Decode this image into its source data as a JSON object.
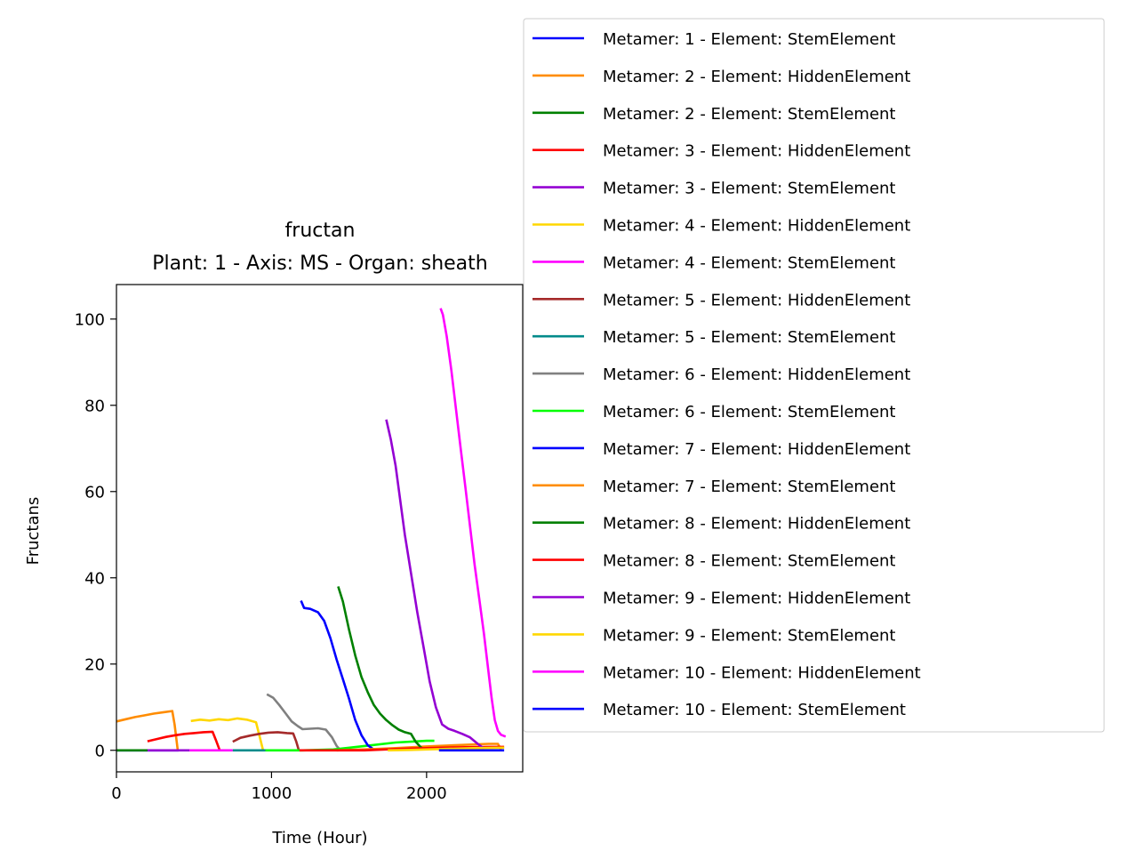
{
  "chart_data": {
    "type": "line",
    "title": "fructan",
    "subtitle": "Plant: 1 - Axis: MS - Organ: sheath",
    "xlabel": "Time (Hour)",
    "ylabel": "Fructans",
    "xlim": [
      0,
      2620
    ],
    "ylim": [
      -5,
      108
    ],
    "xticks": [
      0,
      1000,
      2000
    ],
    "yticks": [
      0,
      20,
      40,
      60,
      80,
      100
    ],
    "grid": false,
    "legend_position": "top-right, outside plot",
    "series": [
      {
        "name": "Metamer: 1 - Element: StemElement",
        "color": "#0000ff",
        "x": [
          0,
          200,
          400
        ],
        "y": [
          0,
          0,
          0
        ]
      },
      {
        "name": "Metamer: 2 - Element: HiddenElement",
        "color": "#ff8c00",
        "x": [
          0,
          60,
          120,
          180,
          240,
          300,
          360,
          375,
          395
        ],
        "y": [
          6.7,
          7.2,
          7.7,
          8.1,
          8.5,
          8.8,
          9.1,
          6.0,
          0.1
        ]
      },
      {
        "name": "Metamer: 2 - Element: StemElement",
        "color": "#008000",
        "x": [
          0,
          100,
          200
        ],
        "y": [
          0,
          0,
          0
        ]
      },
      {
        "name": "Metamer: 3 - Element: HiddenElement",
        "color": "#ff0000",
        "x": [
          200,
          260,
          320,
          380,
          440,
          500,
          560,
          620,
          640,
          665
        ],
        "y": [
          2.1,
          2.6,
          3.1,
          3.5,
          3.8,
          4.0,
          4.2,
          4.3,
          2.5,
          0.1
        ]
      },
      {
        "name": "Metamer: 3 - Element: StemElement",
        "color": "#9400d3",
        "x": [
          200,
          300,
          470
        ],
        "y": [
          0,
          0,
          0
        ]
      },
      {
        "name": "Metamer: 4 - Element: HiddenElement",
        "color": "#ffd700",
        "x": [
          480,
          540,
          600,
          660,
          720,
          780,
          840,
          900,
          925,
          945
        ],
        "y": [
          6.8,
          7.1,
          6.9,
          7.2,
          7.0,
          7.4,
          7.1,
          6.5,
          3.0,
          0.1
        ]
      },
      {
        "name": "Metamer: 4 - Element: StemElement",
        "color": "#ff00ff",
        "x": [
          470,
          600,
          750
        ],
        "y": [
          0,
          0,
          0
        ]
      },
      {
        "name": "Metamer: 5 - Element: HiddenElement",
        "color": "#a52a2a",
        "x": [
          750,
          800,
          860,
          920,
          980,
          1040,
          1100,
          1140,
          1160,
          1175
        ],
        "y": [
          2.0,
          2.9,
          3.4,
          3.8,
          4.1,
          4.2,
          4.0,
          3.9,
          2.0,
          0.1
        ]
      },
      {
        "name": "Metamer: 5 - Element: StemElement",
        "color": "#008b8b",
        "x": [
          750,
          850,
          960
        ],
        "y": [
          0,
          0,
          0
        ]
      },
      {
        "name": "Metamer: 6 - Element: HiddenElement",
        "color": "#808080",
        "x": [
          970,
          1010,
          1050,
          1090,
          1130,
          1170,
          1200,
          1250,
          1300,
          1350,
          1390,
          1420,
          1440
        ],
        "y": [
          13.0,
          12.2,
          10.5,
          8.6,
          6.7,
          5.6,
          4.9,
          5.0,
          5.1,
          4.8,
          3.0,
          1.0,
          0.2
        ]
      },
      {
        "name": "Metamer: 6 - Element: StemElement",
        "color": "#00ff00",
        "x": [
          960,
          1100,
          1200,
          1400,
          1600,
          1800,
          2000,
          2050
        ],
        "y": [
          0,
          0,
          0,
          0.2,
          1.0,
          1.8,
          2.2,
          2.2
        ]
      },
      {
        "name": "Metamer: 7 - Element: HiddenElement",
        "color": "#0000ff",
        "x": [
          1190,
          1210,
          1250,
          1300,
          1340,
          1380,
          1420,
          1460,
          1500,
          1540,
          1580,
          1620,
          1650,
          1670
        ],
        "y": [
          34.7,
          33.0,
          32.8,
          32.0,
          30.0,
          26.0,
          21.0,
          16.5,
          12.0,
          7.0,
          3.5,
          1.2,
          0.4,
          0.1
        ]
      },
      {
        "name": "Metamer: 7 - Element: StemElement",
        "color": "#ff8c00",
        "x": [
          1420,
          1600,
          1800,
          2000,
          2200,
          2400,
          2460,
          2480
        ],
        "y": [
          0,
          0.2,
          0.5,
          0.9,
          1.2,
          1.5,
          1.5,
          0.2
        ]
      },
      {
        "name": "Metamer: 8 - Element: HiddenElement",
        "color": "#008000",
        "x": [
          1430,
          1460,
          1500,
          1540,
          1580,
          1620,
          1660,
          1700,
          1740,
          1780,
          1820,
          1860,
          1900,
          1930,
          1960,
          1980
        ],
        "y": [
          38.0,
          34.5,
          28.0,
          22.0,
          17.0,
          13.5,
          10.5,
          8.5,
          7.0,
          5.8,
          4.8,
          4.2,
          3.8,
          2.0,
          0.8,
          0.2
        ]
      },
      {
        "name": "Metamer: 8 - Element: StemElement",
        "color": "#ff0000",
        "x": [
          1180,
          1400,
          1600,
          1800,
          2000,
          2200,
          2400,
          2500
        ],
        "y": [
          0,
          0,
          0,
          0.3,
          0.5,
          0.7,
          0.8,
          0.8
        ]
      },
      {
        "name": "Metamer: 9 - Element: HiddenElement",
        "color": "#9400d3",
        "x": [
          1740,
          1770,
          1800,
          1830,
          1860,
          1900,
          1940,
          1980,
          2020,
          2060,
          2100,
          2140,
          2180,
          2230,
          2280,
          2330,
          2370
        ],
        "y": [
          76.7,
          72.0,
          66.0,
          58.0,
          50.0,
          41.0,
          32.0,
          24.0,
          16.0,
          10.0,
          6.0,
          5.0,
          4.5,
          3.8,
          3.0,
          1.5,
          0.4
        ]
      },
      {
        "name": "Metamer: 9 - Element: StemElement",
        "color": "#ffd700",
        "x": [
          1750,
          1900,
          2100,
          2300,
          2500
        ],
        "y": [
          0,
          0.1,
          0.3,
          0.5,
          0.6
        ]
      },
      {
        "name": "Metamer: 10 - Element: HiddenElement",
        "color": "#ff00ff",
        "x": [
          2090,
          2105,
          2130,
          2160,
          2190,
          2220,
          2250,
          2280,
          2310,
          2340,
          2370,
          2400,
          2420,
          2440,
          2460,
          2480,
          2500,
          2510
        ],
        "y": [
          102.5,
          101.0,
          96.0,
          88.0,
          79.0,
          70.0,
          61.0,
          52.0,
          43.0,
          35.0,
          27.0,
          18.0,
          12.0,
          7.0,
          4.5,
          3.6,
          3.3,
          3.2
        ]
      },
      {
        "name": "Metamer: 10 - Element: StemElement",
        "color": "#0000ff",
        "x": [
          2080,
          2300,
          2500
        ],
        "y": [
          0,
          0,
          0
        ]
      }
    ]
  }
}
